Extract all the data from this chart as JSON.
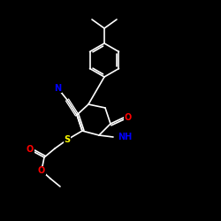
{
  "background_color": "#000000",
  "bond_color": "#ffffff",
  "atom_colors": {
    "N": "#0000ff",
    "O": "#ff0000",
    "S": "#ffff00",
    "C": "#ffffff"
  },
  "figsize": [
    2.5,
    2.5
  ],
  "dpi": 100,
  "bond_lw": 1.2,
  "font_size": 7
}
